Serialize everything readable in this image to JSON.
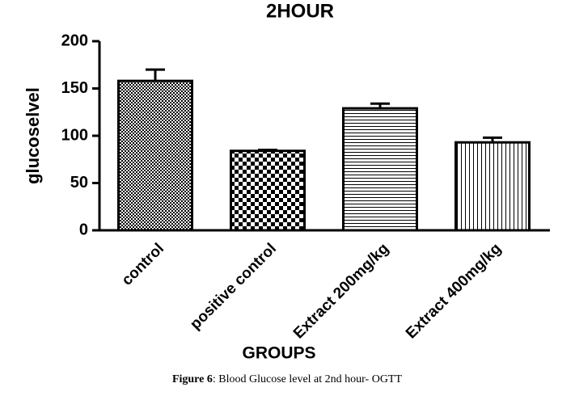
{
  "chart_data": {
    "type": "bar",
    "title": "2HOUR",
    "y_label": "glucoselvel",
    "x_label": "GROUPS",
    "categories": [
      "control",
      "positive control",
      "Extract 200mg/kg",
      "Extract 400mg/kg"
    ],
    "values": [
      158,
      84,
      129,
      93
    ],
    "errors": [
      12,
      1,
      5,
      5
    ],
    "color": "#000000",
    "ylim": [
      0,
      200
    ],
    "yticks": [
      0,
      50,
      100,
      150,
      200
    ]
  },
  "caption": {
    "label": "Figure 6",
    "text": ": Blood Glucose level at 2nd hour- OGTT"
  }
}
